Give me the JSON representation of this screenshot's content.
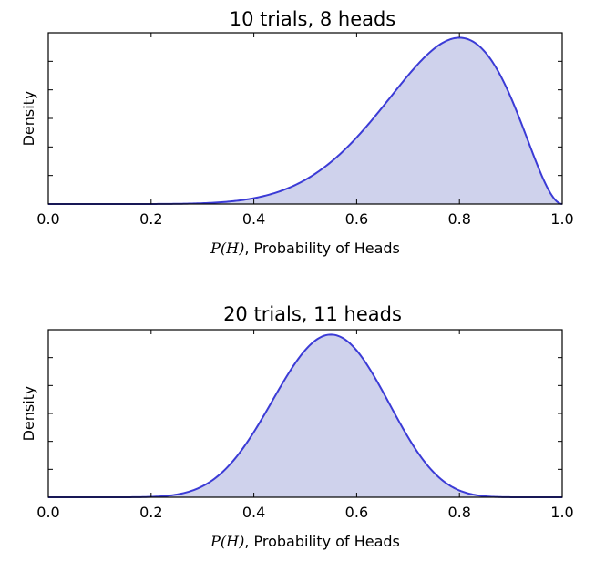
{
  "chart_data": [
    {
      "type": "area",
      "title": "10 trials, 8 heads",
      "xlabel_math": "P(H)",
      "xlabel_text": ", Probability of Heads",
      "ylabel": "Density",
      "xlim": [
        0.0,
        1.0
      ],
      "xticks": [
        "0.0",
        "0.2",
        "0.4",
        "0.6",
        "0.8",
        "1.0"
      ],
      "ytick_count": 7,
      "distribution": "beta",
      "alpha": 9,
      "beta": 3,
      "series": [
        {
          "x": [
            0.0,
            0.1,
            0.2,
            0.3,
            0.4,
            0.5,
            0.6,
            0.7,
            0.8,
            0.9,
            1.0
          ],
          "values": [
            0.0,
            0.0,
            0.01,
            0.08,
            0.33,
            0.97,
            2.03,
            3.02,
            3.31,
            2.13,
            0.0
          ]
        }
      ],
      "colors": {
        "line": "#3b3bd6",
        "fill": "#cfd2ec"
      },
      "grid": false
    },
    {
      "type": "area",
      "title": "20 trials, 11 heads",
      "xlabel_math": "P(H)",
      "xlabel_text": ", Probability of Heads",
      "ylabel": "Density",
      "xlim": [
        0.0,
        1.0
      ],
      "xticks": [
        "0.0",
        "0.2",
        "0.4",
        "0.6",
        "0.8",
        "1.0"
      ],
      "ytick_count": 7,
      "distribution": "beta",
      "alpha": 12,
      "beta": 10,
      "series": [
        {
          "x": [
            0.0,
            0.1,
            0.2,
            0.3,
            0.4,
            0.5,
            0.6,
            0.7,
            0.8,
            0.9,
            1.0
          ],
          "values": [
            0.0,
            0.0,
            0.02,
            0.38,
            1.75,
            3.53,
            3.18,
            1.3,
            0.16,
            0.0,
            0.0
          ]
        }
      ],
      "colors": {
        "line": "#3b3bd6",
        "fill": "#cfd2ec"
      },
      "grid": false
    }
  ]
}
